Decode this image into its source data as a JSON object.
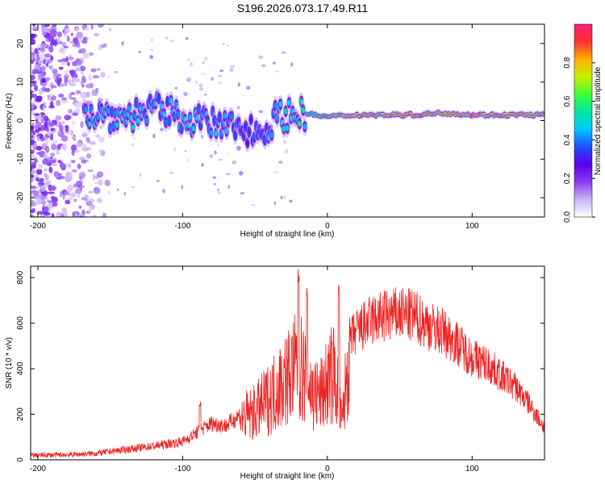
{
  "title": "S196.2026.073.17.49.R11",
  "colors": {
    "snr_line": "#ee2222",
    "frame": "#000000",
    "colormap": [
      "#ffffff",
      "#c9b4f5",
      "#8a3cf0",
      "#5b00e8",
      "#1f4dff",
      "#00c8ff",
      "#00e6a0",
      "#3cff3c",
      "#c8f000",
      "#ffb000",
      "#ff3030",
      "#ff1e78"
    ]
  },
  "chart_data": [
    {
      "type": "heatmap",
      "xlabel": "Height of straight line (km)",
      "ylabel": "Frequency (Hz)",
      "xlim": [
        -205,
        150
      ],
      "ylim": [
        -25,
        25
      ],
      "xticks": [
        -200,
        -100,
        0,
        100
      ],
      "yticks": [
        -20,
        -10,
        0,
        10,
        20
      ],
      "colorbar": {
        "label": "Normalized spectral amplitude",
        "range": [
          0,
          1
        ],
        "ticks": [
          0.0,
          0.2,
          0.4,
          0.6,
          0.8
        ]
      },
      "ridge": {
        "description": "dominant frequency ridge",
        "x": [
          -165,
          -140,
          -120,
          -100,
          -80,
          -60,
          -45,
          -35,
          -20,
          0,
          20,
          40,
          60,
          80,
          100,
          120,
          150
        ],
        "frequency": [
          2,
          1,
          3,
          1,
          -1,
          -2,
          -3,
          1,
          2,
          1,
          1.5,
          1.5,
          1.5,
          2,
          1.5,
          1.5,
          1.5
        ],
        "amplitude": [
          0.45,
          0.5,
          0.45,
          0.5,
          0.45,
          0.4,
          0.4,
          0.5,
          0.55,
          0.65,
          0.8,
          0.85,
          0.85,
          0.85,
          0.85,
          0.8,
          0.8
        ]
      }
    },
    {
      "type": "line",
      "xlabel": "Height of straight line (km)",
      "ylabel": "SNR (10 * v/v)",
      "xlim": [
        -205,
        150
      ],
      "ylim": [
        0,
        850
      ],
      "xticks": [
        -200,
        -100,
        0,
        100
      ],
      "yticks": [
        0,
        200,
        400,
        600,
        800
      ],
      "series": [
        {
          "name": "SNR",
          "x": [
            -205,
            -180,
            -160,
            -140,
            -120,
            -100,
            -90,
            -80,
            -70,
            -60,
            -50,
            -40,
            -30,
            -25,
            -20,
            -15,
            -10,
            -5,
            0,
            5,
            10,
            15,
            20,
            30,
            40,
            50,
            60,
            70,
            80,
            90,
            100,
            110,
            120,
            130,
            140,
            150
          ],
          "y": [
            20,
            22,
            28,
            45,
            60,
            80,
            120,
            160,
            150,
            200,
            230,
            300,
            390,
            420,
            470,
            400,
            320,
            310,
            380,
            430,
            170,
            520,
            560,
            610,
            630,
            640,
            630,
            590,
            560,
            510,
            450,
            420,
            370,
            320,
            240,
            140
          ]
        }
      ],
      "spikes": [
        {
          "x": -20,
          "y": 840
        },
        {
          "x": -14,
          "y": 780
        },
        {
          "x": 8,
          "y": 790
        },
        {
          "x": -88,
          "y": 260
        }
      ]
    }
  ]
}
